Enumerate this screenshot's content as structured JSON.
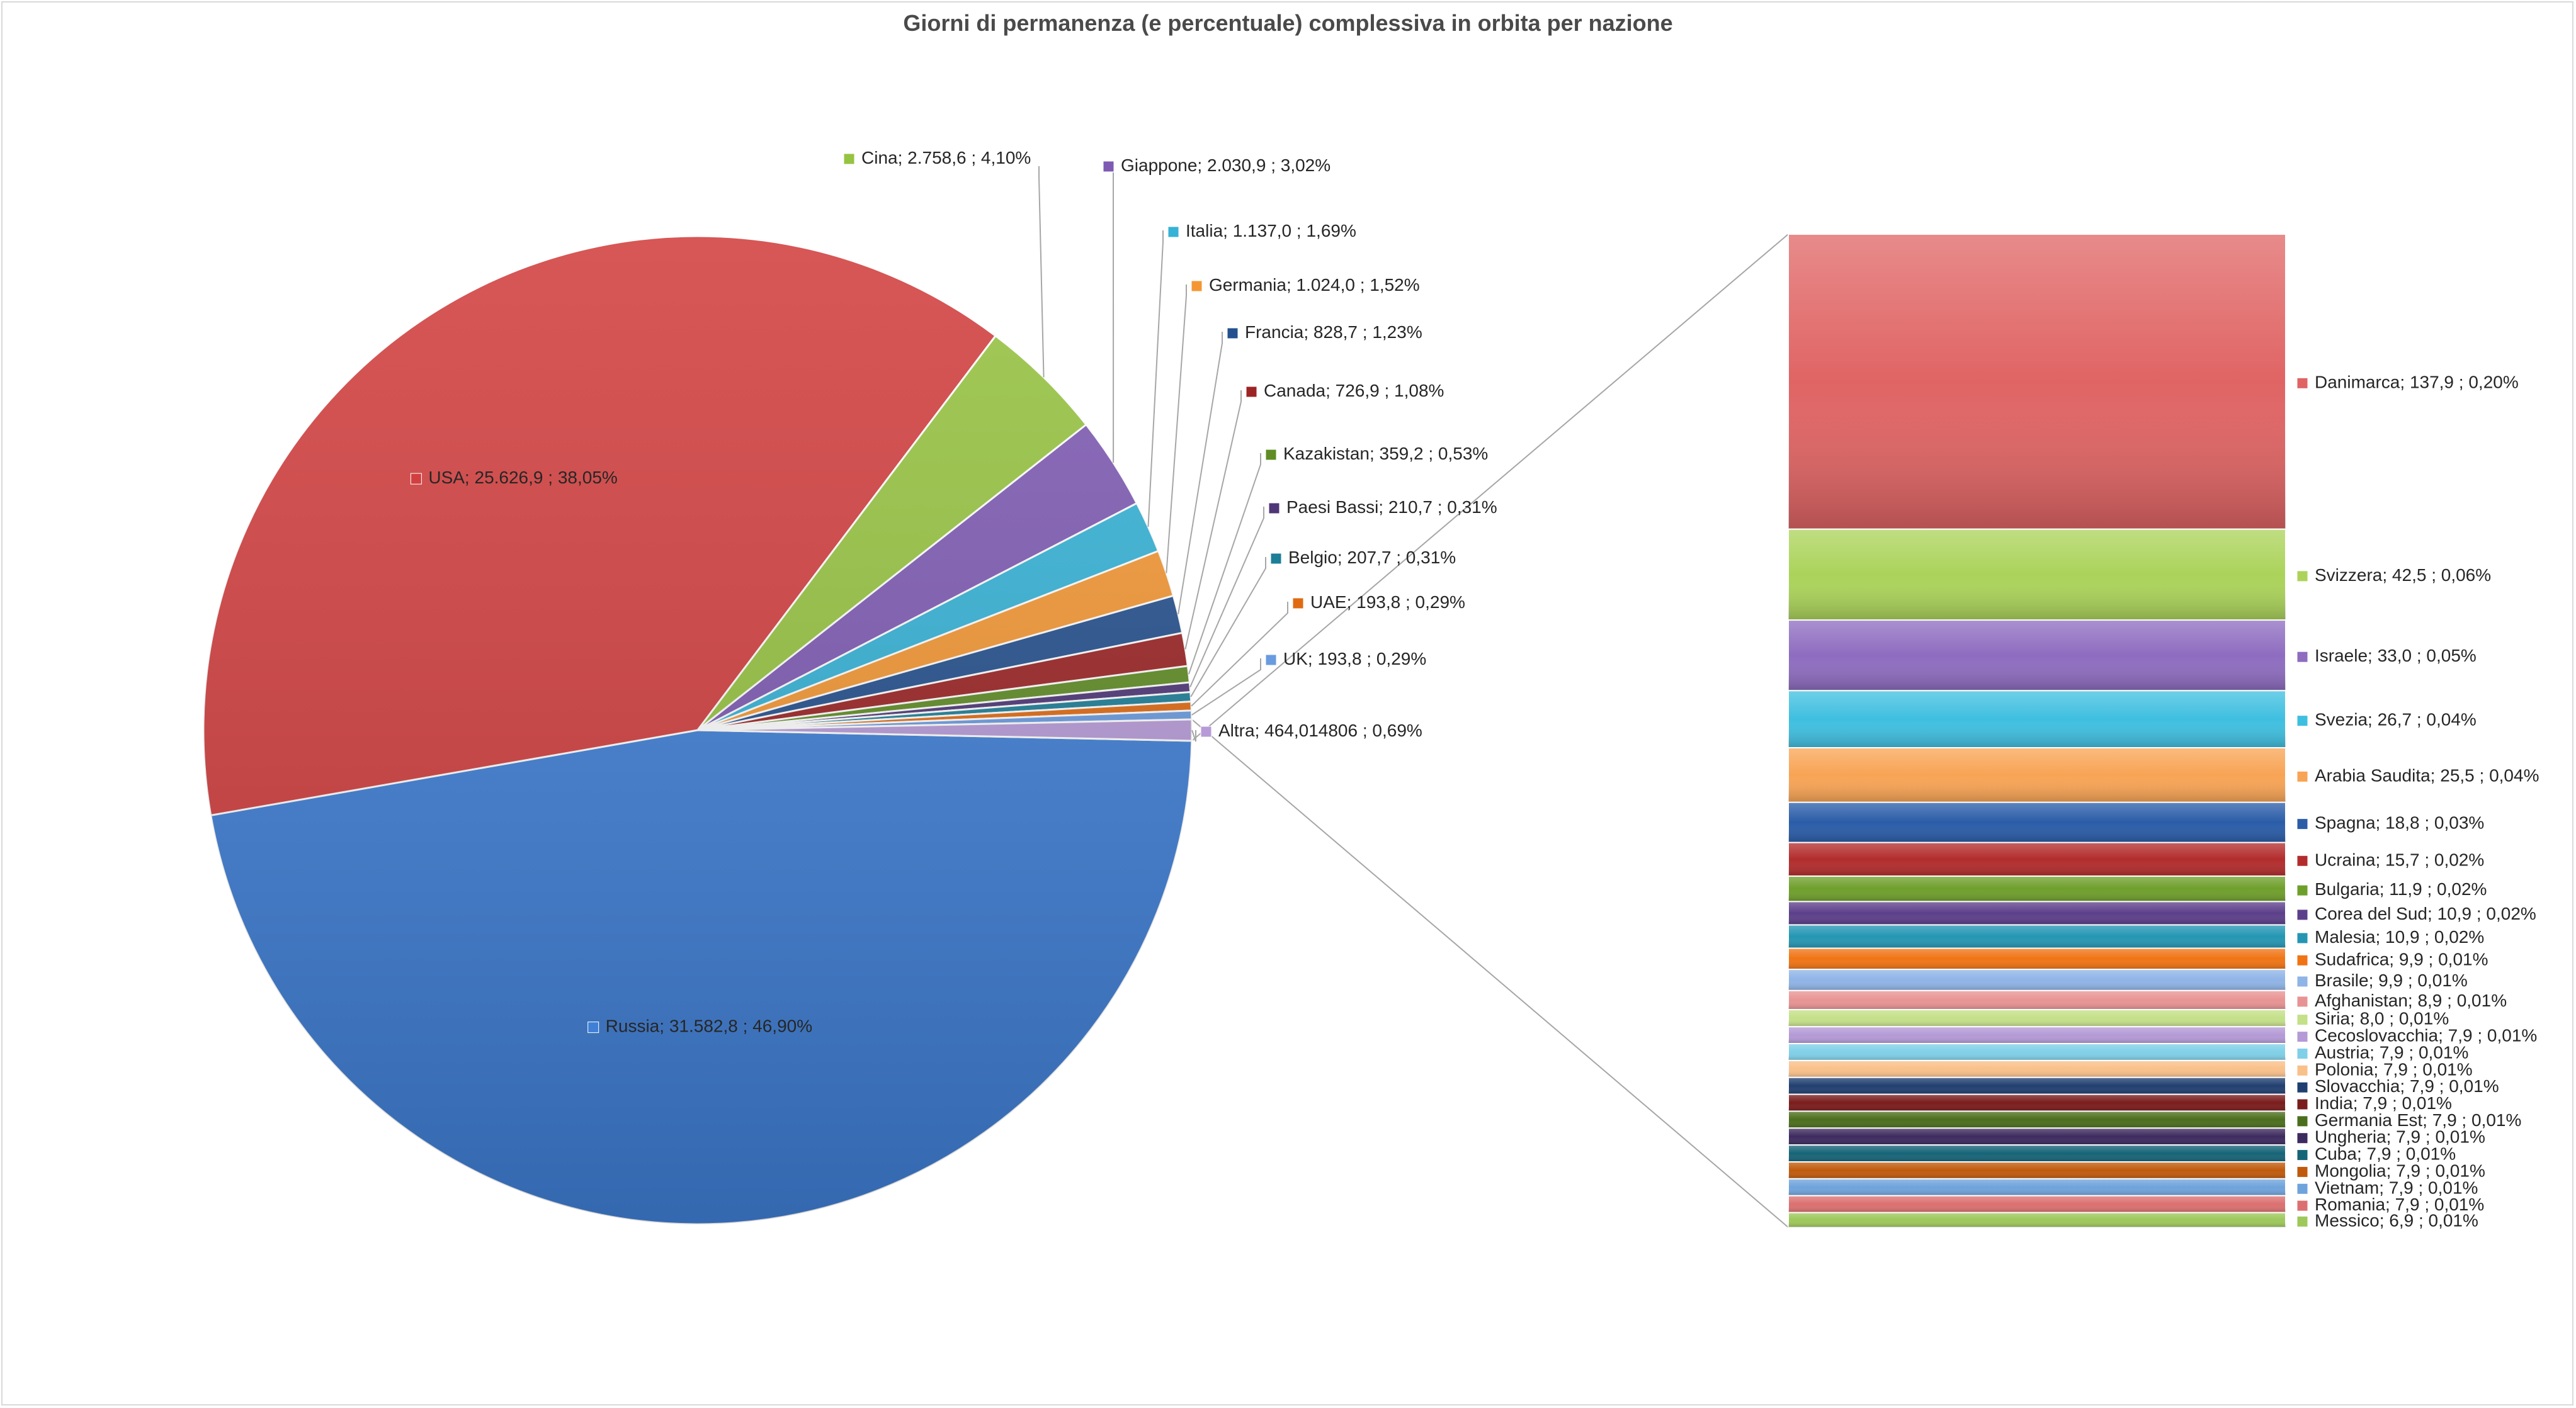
{
  "chart_data": {
    "type": "pie",
    "variant": "bar-of-pie",
    "title": "Giorni di permanenza (e percentuale) complessiva in orbita per nazione",
    "slices": [
      {
        "name": "Russia",
        "value": 31582.8,
        "value_label": "31.582,8",
        "percent_label": "46,90%",
        "color": "#3f7fd6"
      },
      {
        "name": "USA",
        "value": 25626.9,
        "value_label": "25.626,9",
        "percent_label": "38,05%",
        "color": "#d23f3f"
      },
      {
        "name": "Cina",
        "value": 2758.6,
        "value_label": "2.758,6",
        "percent_label": "4,10%",
        "color": "#96c341"
      },
      {
        "name": "Giappone",
        "value": 2030.9,
        "value_label": "2.030,9",
        "percent_label": "3,02%",
        "color": "#7e5ab3"
      },
      {
        "name": "Italia",
        "value": 1137.0,
        "value_label": "1.137,0",
        "percent_label": "1,69%",
        "color": "#35b2d6"
      },
      {
        "name": "Germania",
        "value": 1024.0,
        "value_label": "1.024,0",
        "percent_label": "1,52%",
        "color": "#f49733"
      },
      {
        "name": "Francia",
        "value": 828.7,
        "value_label": "828,7",
        "percent_label": "1,23%",
        "color": "#24508e"
      },
      {
        "name": "Canada",
        "value": 726.9,
        "value_label": "726,9",
        "percent_label": "1,08%",
        "color": "#9c2424"
      },
      {
        "name": "Kazakistan",
        "value": 359.2,
        "value_label": "359,2",
        "percent_label": "0,53%",
        "color": "#5f8c25"
      },
      {
        "name": "Paesi Bassi",
        "value": 210.7,
        "value_label": "210,7",
        "percent_label": "0,31%",
        "color": "#4e3677"
      },
      {
        "name": "Belgio",
        "value": 207.7,
        "value_label": "207,7",
        "percent_label": "0,31%",
        "color": "#1d7e97"
      },
      {
        "name": "UAE",
        "value": 193.8,
        "value_label": "193,8",
        "percent_label": "0,29%",
        "color": "#e06a12"
      },
      {
        "name": "UK",
        "value": 193.8,
        "value_label": "193,8",
        "percent_label": "0,29%",
        "color": "#6a9be0"
      },
      {
        "name": "Altra",
        "value": 464.014806,
        "value_label": "464,014806",
        "percent_label": "0,69%",
        "color": "#b79bd8"
      }
    ],
    "bar_items": [
      {
        "name": "Danimarca",
        "value": 137.9,
        "value_label": "137,9",
        "percent_label": "0,20%",
        "color": "#e06464"
      },
      {
        "name": "Svizzera",
        "value": 42.5,
        "value_label": "42,5",
        "percent_label": "0,06%",
        "color": "#abd35a"
      },
      {
        "name": "Israele",
        "value": 33.0,
        "value_label": "33,0",
        "percent_label": "0,05%",
        "color": "#8e6cc0"
      },
      {
        "name": "Svezia",
        "value": 26.7,
        "value_label": "26,7",
        "percent_label": "0,04%",
        "color": "#3fbfe0"
      },
      {
        "name": "Arabia Saudita",
        "value": 25.5,
        "value_label": "25,5",
        "percent_label": "0,04%",
        "color": "#f8a455"
      },
      {
        "name": "Spagna",
        "value": 18.8,
        "value_label": "18,8",
        "percent_label": "0,03%",
        "color": "#2a5ca8"
      },
      {
        "name": "Ucraina",
        "value": 15.7,
        "value_label": "15,7",
        "percent_label": "0,02%",
        "color": "#b32c2c"
      },
      {
        "name": "Bulgaria",
        "value": 11.9,
        "value_label": "11,9",
        "percent_label": "0,02%",
        "color": "#6f9f2b"
      },
      {
        "name": "Corea del Sud",
        "value": 10.9,
        "value_label": "10,9",
        "percent_label": "0,02%",
        "color": "#5c3f8a"
      },
      {
        "name": "Malesia",
        "value": 10.9,
        "value_label": "10,9",
        "percent_label": "0,02%",
        "color": "#2496b3"
      },
      {
        "name": "Sudafrica",
        "value": 9.9,
        "value_label": "9,9",
        "percent_label": "0,01%",
        "color": "#f07414"
      },
      {
        "name": "Brasile",
        "value": 9.9,
        "value_label": "9,9",
        "percent_label": "0,01%",
        "color": "#8fb4e6"
      },
      {
        "name": "Afghanistan",
        "value": 8.9,
        "value_label": "8,9",
        "percent_label": "0,01%",
        "color": "#e89393"
      },
      {
        "name": "Siria",
        "value": 8.0,
        "value_label": "8,0",
        "percent_label": "0,01%",
        "color": "#c4e089"
      },
      {
        "name": "Cecoslovacchia",
        "value": 7.9,
        "value_label": "7,9",
        "percent_label": "0,01%",
        "color": "#b49ad6"
      },
      {
        "name": "Austria",
        "value": 7.9,
        "value_label": "7,9",
        "percent_label": "0,01%",
        "color": "#7fd0e8"
      },
      {
        "name": "Polonia",
        "value": 7.9,
        "value_label": "7,9",
        "percent_label": "0,01%",
        "color": "#f9c08a"
      },
      {
        "name": "Slovacchia",
        "value": 7.9,
        "value_label": "7,9",
        "percent_label": "0,01%",
        "color": "#203f70"
      },
      {
        "name": "India",
        "value": 7.9,
        "value_label": "7,9",
        "percent_label": "0,01%",
        "color": "#7a1c1c"
      },
      {
        "name": "Germania Est",
        "value": 7.9,
        "value_label": "7,9",
        "percent_label": "0,01%",
        "color": "#4b6e1c"
      },
      {
        "name": "Ungheria",
        "value": 7.9,
        "value_label": "7,9",
        "percent_label": "0,01%",
        "color": "#3d2a5e"
      },
      {
        "name": "Cuba",
        "value": 7.9,
        "value_label": "7,9",
        "percent_label": "0,01%",
        "color": "#166477"
      },
      {
        "name": "Mongolia",
        "value": 7.9,
        "value_label": "7,9",
        "percent_label": "0,01%",
        "color": "#c05a0c"
      },
      {
        "name": "Vietnam",
        "value": 7.9,
        "value_label": "7,9",
        "percent_label": "0,01%",
        "color": "#6fa3dc"
      },
      {
        "name": "Romania",
        "value": 7.9,
        "value_label": "7,9",
        "percent_label": "0,01%",
        "color": "#dc7070"
      },
      {
        "name": "Messico",
        "value": 6.9,
        "value_label": "6,9",
        "percent_label": "0,01%",
        "color": "#9dc85a"
      }
    ],
    "legend": "none"
  }
}
